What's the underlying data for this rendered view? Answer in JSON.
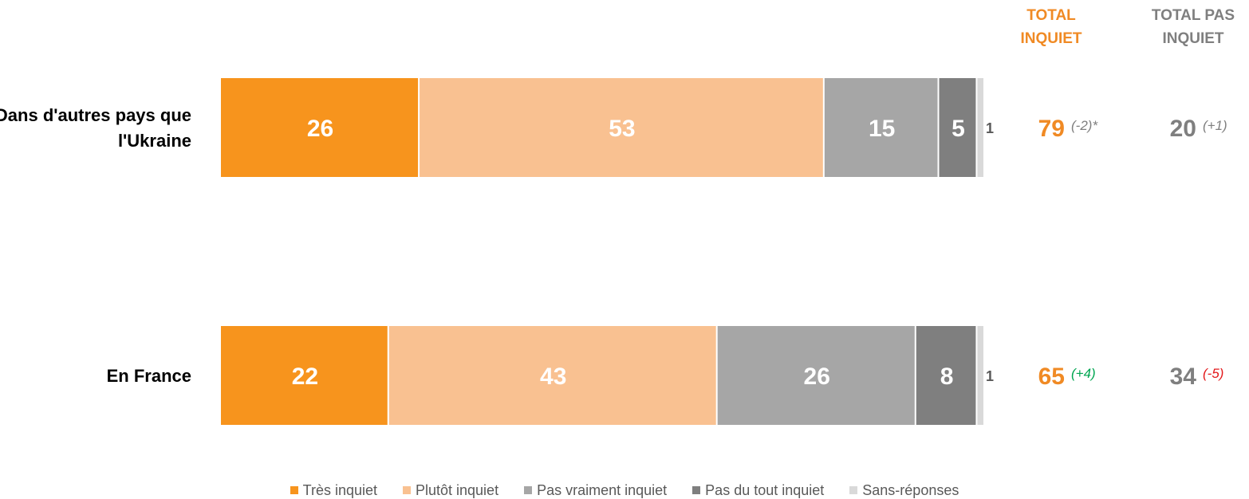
{
  "headers": {
    "total_inquiet": "TOTAL INQUIET",
    "total_pas_inquiet": "TOTAL PAS INQUIET"
  },
  "colors": {
    "tres_inquiet": "#F7941D",
    "plutot_inquiet": "#F9C191",
    "pas_vraiment_inquiet": "#A6A6A6",
    "pas_du_tout_inquiet": "#7F7F7F",
    "sans_reponses": "#D9D9D9",
    "total_inquiet_text": "#F08A24",
    "total_pas_inquiet_text": "#7F7F7F",
    "change_neutral": "#7F7F7F",
    "change_positive": "#00A651",
    "change_negative": "#E31A1C"
  },
  "chart_data": {
    "type": "bar",
    "orientation": "horizontal-stacked",
    "categories": [
      "Dans d'autres pays que l'Ukraine",
      "En France"
    ],
    "series": [
      {
        "name": "Très inquiet",
        "values": [
          26,
          22
        ]
      },
      {
        "name": "Plutôt inquiet",
        "values": [
          53,
          43
        ]
      },
      {
        "name": "Pas vraiment inquiet",
        "values": [
          15,
          26
        ]
      },
      {
        "name": "Pas du tout inquiet",
        "values": [
          5,
          8
        ]
      },
      {
        "name": "Sans-réponses",
        "values": [
          1,
          1
        ]
      }
    ],
    "totals": [
      {
        "total_inquiet": 79,
        "total_inquiet_change": "(-2)*",
        "total_pas_inquiet": 20,
        "total_pas_inquiet_change": "(+1)"
      },
      {
        "total_inquiet": 65,
        "total_inquiet_change": "(+4)",
        "total_pas_inquiet": 34,
        "total_pas_inquiet_change": "(-5)"
      }
    ],
    "xlim": [
      0,
      100
    ],
    "legend_position": "bottom"
  }
}
